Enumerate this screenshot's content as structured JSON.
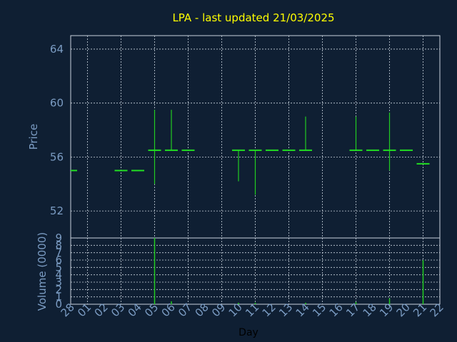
{
  "chart_data": [
    {
      "type": "ohlc",
      "title": "LPA - last updated 21/03/2025",
      "ylabel": "Price",
      "ylim": [
        50,
        65
      ],
      "yticks": [
        52,
        56,
        60,
        64
      ],
      "grid": true,
      "categories": [
        "28",
        "01",
        "02",
        "03",
        "04",
        "05",
        "06",
        "07",
        "08",
        "09",
        "10",
        "11",
        "12",
        "13",
        "14",
        "15",
        "16",
        "17",
        "18",
        "19",
        "20",
        "21",
        "22"
      ],
      "bars": [
        {
          "day": "28",
          "high": 55.0,
          "low": 55.0,
          "close": 55.0
        },
        {
          "day": "03",
          "high": 55.0,
          "low": 55.0,
          "close": 55.0
        },
        {
          "day": "04",
          "high": 55.0,
          "low": 55.0,
          "close": 55.0
        },
        {
          "day": "05",
          "high": 59.5,
          "low": 54.0,
          "close": 56.5
        },
        {
          "day": "06",
          "high": 59.5,
          "low": 56.5,
          "close": 56.5
        },
        {
          "day": "07",
          "high": 56.5,
          "low": 56.5,
          "close": 56.5
        },
        {
          "day": "10",
          "high": 56.5,
          "low": 54.2,
          "close": 56.5
        },
        {
          "day": "11",
          "high": 56.5,
          "low": 53.2,
          "close": 56.5
        },
        {
          "day": "12",
          "high": 56.5,
          "low": 56.5,
          "close": 56.5
        },
        {
          "day": "13",
          "high": 56.5,
          "low": 56.5,
          "close": 56.5
        },
        {
          "day": "14",
          "high": 59.0,
          "low": 56.5,
          "close": 56.5
        },
        {
          "day": "17",
          "high": 59.0,
          "low": 56.5,
          "close": 56.5
        },
        {
          "day": "18",
          "high": 56.5,
          "low": 56.5,
          "close": 56.5
        },
        {
          "day": "19",
          "high": 59.3,
          "low": 55.0,
          "close": 56.5
        },
        {
          "day": "20",
          "high": 56.5,
          "low": 56.5,
          "close": 56.5
        },
        {
          "day": "21",
          "high": 55.5,
          "low": 55.5,
          "close": 55.5
        }
      ]
    },
    {
      "type": "bar",
      "ylabel": "Volume (0000)",
      "xlabel": "Day",
      "ylim": [
        0,
        9
      ],
      "yticks": [
        0,
        1,
        2,
        3,
        4,
        5,
        6,
        7,
        8,
        9
      ],
      "grid": true,
      "categories": [
        "28",
        "01",
        "02",
        "03",
        "04",
        "05",
        "06",
        "07",
        "08",
        "09",
        "10",
        "11",
        "12",
        "13",
        "14",
        "15",
        "16",
        "17",
        "18",
        "19",
        "20",
        "21",
        "22"
      ],
      "values": [
        {
          "day": "05",
          "volume": 9.0
        },
        {
          "day": "06",
          "volume": 0.4
        },
        {
          "day": "10",
          "volume": 0.2
        },
        {
          "day": "11",
          "volume": 0.2
        },
        {
          "day": "14",
          "volume": 0.2
        },
        {
          "day": "17",
          "volume": 0.3
        },
        {
          "day": "19",
          "volume": 0.8
        },
        {
          "day": "21",
          "volume": 6.0
        }
      ]
    }
  ]
}
